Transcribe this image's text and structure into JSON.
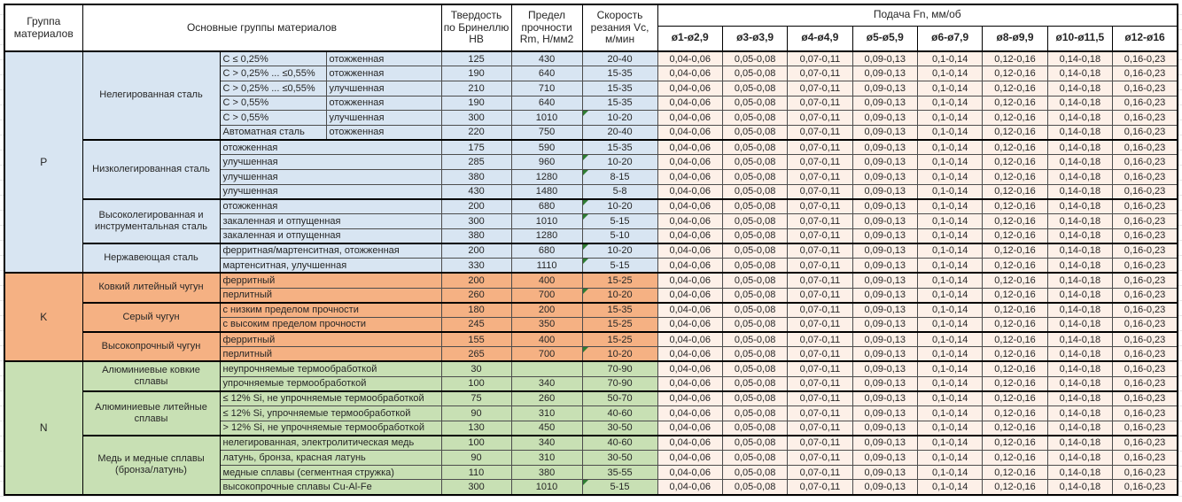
{
  "header": {
    "col_group": "Группа материалов",
    "col_materials": "Основные группы материалов",
    "col_hb": "Твердость по Бринеллю HB",
    "col_rm": "Предел прочности Rm, Н/мм2",
    "col_vc": "Скорость резания Vc, м/мин",
    "col_feed": "Подача Fn, мм/об",
    "feed_columns": [
      "ø1-ø2,9",
      "ø3-ø3,9",
      "ø4-ø4,9",
      "ø5-ø5,9",
      "ø6-ø7,9",
      "ø8-ø9,9",
      "ø10-ø11,5",
      "ø12-ø16"
    ]
  },
  "feed_values": [
    "0,04-0,06",
    "0,05-0,08",
    "0,07-0,11",
    "0,09-0,13",
    "0,1-0,14",
    "0,12-0,16",
    "0,14-0,18",
    "0,16-0,23"
  ],
  "colors": {
    "group_p": "#d8e5f2",
    "group_k": "#f5b183",
    "group_n": "#c8e0b4",
    "feed_bg": "#fdf0e8",
    "comment_green": "#2e7d32"
  },
  "groups": [
    {
      "code": "P",
      "color_key": "group_p",
      "subgroups": [
        {
          "name": "Нелегированная сталь",
          "rows": [
            {
              "detail": [
                "C ≤ 0,25%",
                "отожженная"
              ],
              "hb": "125",
              "rm": "430",
              "vc": "20-40",
              "note": false
            },
            {
              "detail": [
                "C > 0,25% ... ≤0,55%",
                "отожженная"
              ],
              "hb": "190",
              "rm": "640",
              "vc": "15-35",
              "note": false
            },
            {
              "detail": [
                "C > 0,25% ... ≤0,55%",
                "улучшенная"
              ],
              "hb": "210",
              "rm": "710",
              "vc": "15-35",
              "note": false
            },
            {
              "detail": [
                "C > 0,55%",
                "отожженная"
              ],
              "hb": "190",
              "rm": "640",
              "vc": "15-35",
              "note": false
            },
            {
              "detail": [
                "C > 0,55%",
                "улучшенная"
              ],
              "hb": "300",
              "rm": "1010",
              "vc": "10-20",
              "note": true
            },
            {
              "detail": [
                "Автоматная сталь",
                "отожженная"
              ],
              "hb": "220",
              "rm": "750",
              "vc": "20-40",
              "note": false
            }
          ]
        },
        {
          "name": "Низколегированная сталь",
          "rows": [
            {
              "detail": [
                "отожженная"
              ],
              "hb": "175",
              "rm": "590",
              "vc": "15-35",
              "note": false
            },
            {
              "detail": [
                "улучшенная"
              ],
              "hb": "285",
              "rm": "960",
              "vc": "10-20",
              "note": true
            },
            {
              "detail": [
                "улучшенная"
              ],
              "hb": "380",
              "rm": "1280",
              "vc": "8-15",
              "note": true
            },
            {
              "detail": [
                "улучшенная"
              ],
              "hb": "430",
              "rm": "1480",
              "vc": "5-8",
              "note": false
            }
          ]
        },
        {
          "name": "Высоколегированная и инструментальная сталь",
          "rows": [
            {
              "detail": [
                "отожженная"
              ],
              "hb": "200",
              "rm": "680",
              "vc": "10-20",
              "note": true
            },
            {
              "detail": [
                "закаленная и отпущенная"
              ],
              "hb": "300",
              "rm": "1010",
              "vc": "5-15",
              "note": true
            },
            {
              "detail": [
                "закаленная и отпущенная"
              ],
              "hb": "380",
              "rm": "1280",
              "vc": "5-10",
              "note": false
            }
          ]
        },
        {
          "name": "Нержавеющая сталь",
          "rows": [
            {
              "detail": [
                "ферритная/мартенситная, отожженная"
              ],
              "hb": "200",
              "rm": "680",
              "vc": "10-20",
              "note": true
            },
            {
              "detail": [
                "мартенситная, улучшенная"
              ],
              "hb": "330",
              "rm": "1110",
              "vc": "5-15",
              "note": true
            }
          ]
        }
      ]
    },
    {
      "code": "K",
      "color_key": "group_k",
      "subgroups": [
        {
          "name": "Ковкий литейный чугун",
          "rows": [
            {
              "detail": [
                "ферритный"
              ],
              "hb": "200",
              "rm": "400",
              "vc": "15-25",
              "note": false
            },
            {
              "detail": [
                "перлитный"
              ],
              "hb": "260",
              "rm": "700",
              "vc": "10-20",
              "note": true
            }
          ]
        },
        {
          "name": "Серый чугун",
          "rows": [
            {
              "detail": [
                "с низким пределом прочности"
              ],
              "hb": "180",
              "rm": "200",
              "vc": "15-35",
              "note": false
            },
            {
              "detail": [
                "с высоким пределом прочности"
              ],
              "hb": "245",
              "rm": "350",
              "vc": "15-25",
              "note": false
            }
          ]
        },
        {
          "name": "Высокопрочный чугун",
          "rows": [
            {
              "detail": [
                "ферритный"
              ],
              "hb": "155",
              "rm": "400",
              "vc": "15-25",
              "note": false
            },
            {
              "detail": [
                "перлитный"
              ],
              "hb": "265",
              "rm": "700",
              "vc": "10-20",
              "note": true
            }
          ]
        }
      ]
    },
    {
      "code": "N",
      "color_key": "group_n",
      "subgroups": [
        {
          "name": "Алюминиевые ковкие сплавы",
          "rows": [
            {
              "detail": [
                "неупрочняемые термообработкой"
              ],
              "hb": "30",
              "rm": "",
              "vc": "70-90",
              "note": false
            },
            {
              "detail": [
                "упрочняемые термообработкой"
              ],
              "hb": "100",
              "rm": "340",
              "vc": "70-90",
              "note": false
            }
          ]
        },
        {
          "name": "Алюминиевые литейные сплавы",
          "rows": [
            {
              "detail": [
                "≤ 12% Si, не упрочняемые термообработкой"
              ],
              "hb": "75",
              "rm": "260",
              "vc": "50-70",
              "note": false
            },
            {
              "detail": [
                "≤ 12% Si, упрочняемые термообработкой"
              ],
              "hb": "90",
              "rm": "310",
              "vc": "40-60",
              "note": false
            },
            {
              "detail": [
                "> 12% Si, не упрочняемые термообработкой"
              ],
              "hb": "130",
              "rm": "450",
              "vc": "30-50",
              "note": false
            }
          ]
        },
        {
          "name": "Медь и медные сплавы (бронза/латунь)",
          "rows": [
            {
              "detail": [
                "нелегированная, электролитическая медь"
              ],
              "hb": "100",
              "rm": "340",
              "vc": "40-60",
              "note": false
            },
            {
              "detail": [
                "латунь, бронза, красная латунь"
              ],
              "hb": "90",
              "rm": "310",
              "vc": "30-50",
              "note": false
            },
            {
              "detail": [
                "медные сплавы (сегментная стружка)"
              ],
              "hb": "110",
              "rm": "380",
              "vc": "35-55",
              "note": false
            },
            {
              "detail": [
                "высокопрочные сплавы Cu-Al-Fe"
              ],
              "hb": "300",
              "rm": "1010",
              "vc": "5-15",
              "note": true
            }
          ]
        }
      ]
    }
  ]
}
